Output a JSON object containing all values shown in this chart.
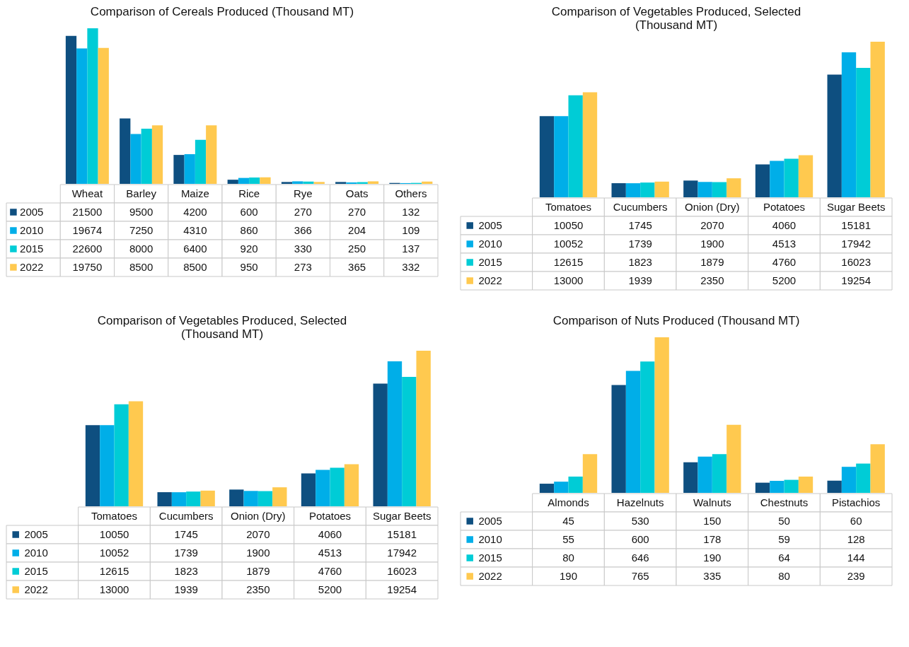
{
  "chart_data": [
    {
      "type": "bar",
      "title": "Comparison of Cereals Produced (Thousand MT)",
      "categories": [
        "Wheat",
        "Barley",
        "Maize",
        "Rice",
        "Rye",
        "Oats",
        "Others"
      ],
      "data_labels": true,
      "legend": "bottom left",
      "series": [
        {
          "name": "2005",
          "color": "#0e4f80",
          "values": [
            21500,
            9500,
            4200,
            600,
            270,
            270,
            132
          ]
        },
        {
          "name": "2010",
          "color": "#00aee8",
          "values": [
            19674,
            7250,
            4310,
            860,
            366,
            204,
            109
          ]
        },
        {
          "name": "2015",
          "color": "#00ccd6",
          "values": [
            22600,
            8000,
            6400,
            920,
            330,
            250,
            137
          ]
        },
        {
          "name": "2022",
          "color": "#ffc94f",
          "values": [
            19750,
            8500,
            8500,
            950,
            273,
            365,
            332
          ]
        }
      ]
    },
    {
      "type": "bar",
      "title": "Comparison of Vegetables Produced, Selected (Thousand MT)",
      "categories": [
        "Tomatoes",
        "Cucumbers",
        "Onion (Dry)",
        "Potatoes",
        "Sugar Beets"
      ],
      "data_labels": true,
      "legend": "bottom left",
      "series": [
        {
          "name": "2005",
          "color": "#0e4f80",
          "values": [
            10050,
            1745,
            2070,
            4060,
            15181
          ]
        },
        {
          "name": "2010",
          "color": "#00aee8",
          "values": [
            10052,
            1739,
            1900,
            4513,
            17942
          ]
        },
        {
          "name": "2015",
          "color": "#00ccd6",
          "values": [
            12615,
            1823,
            1879,
            4760,
            16023
          ]
        },
        {
          "name": "2022",
          "color": "#ffc94f",
          "values": [
            13000,
            1939,
            2350,
            5200,
            19254
          ]
        }
      ]
    },
    {
      "type": "bar",
      "title": "Comparison of Vegetables Produced, Selected (Thousand MT)",
      "categories": [
        "Tomatoes",
        "Cucumbers",
        "Onion (Dry)",
        "Potatoes",
        "Sugar Beets"
      ],
      "data_labels": true,
      "legend": "bottom left",
      "series": [
        {
          "name": "2005",
          "color": "#0e4f80",
          "values": [
            10050,
            1745,
            2070,
            4060,
            15181
          ]
        },
        {
          "name": "2010",
          "color": "#00aee8",
          "values": [
            10052,
            1739,
            1900,
            4513,
            17942
          ]
        },
        {
          "name": "2015",
          "color": "#00ccd6",
          "values": [
            12615,
            1823,
            1879,
            4760,
            16023
          ]
        },
        {
          "name": "2022",
          "color": "#ffc94f",
          "values": [
            13000,
            1939,
            2350,
            5200,
            19254
          ]
        }
      ]
    },
    {
      "type": "bar",
      "title": "Comparison of Nuts Produced (Thousand MT)",
      "categories": [
        "Almonds",
        "Hazelnuts",
        "Walnuts",
        "Chestnuts",
        "Pistachios"
      ],
      "data_labels": true,
      "legend": "bottom left",
      "series": [
        {
          "name": "2005",
          "color": "#0e4f80",
          "values": [
            45,
            530,
            150,
            50,
            60
          ]
        },
        {
          "name": "2010",
          "color": "#00aee8",
          "values": [
            55,
            600,
            178,
            59,
            128
          ]
        },
        {
          "name": "2015",
          "color": "#00ccd6",
          "values": [
            80,
            646,
            190,
            64,
            144
          ]
        },
        {
          "name": "2022",
          "color": "#ffc94f",
          "values": [
            190,
            765,
            335,
            80,
            239
          ]
        }
      ]
    }
  ]
}
